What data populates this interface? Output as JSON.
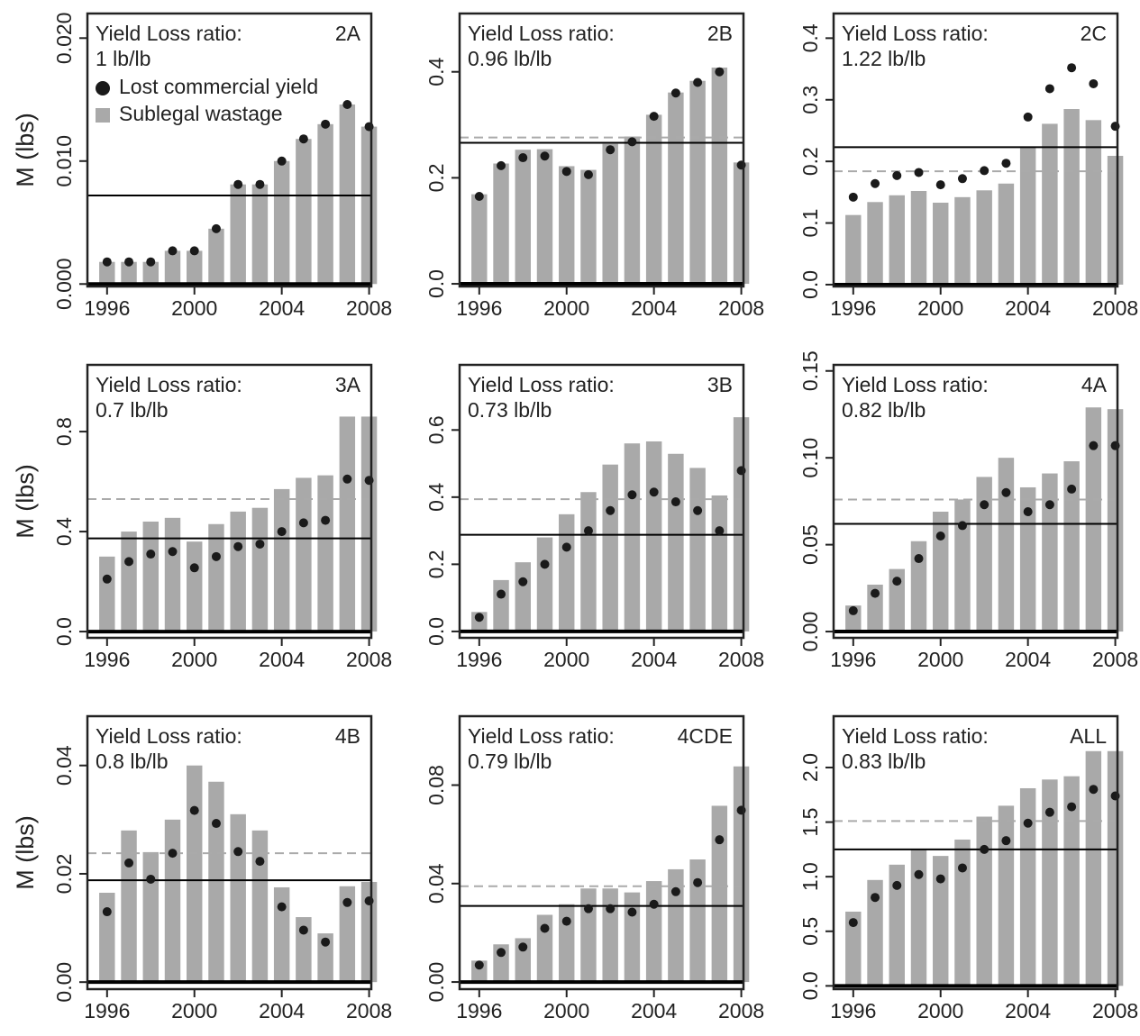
{
  "chart_data": [
    {
      "type": "bar",
      "title": "2A",
      "ratio_label": "Yield Loss ratio:",
      "ratio": "1 lb/lb",
      "ylabel": "M (lbs)",
      "x": [
        1996,
        1997,
        1998,
        1999,
        2000,
        2001,
        2002,
        2003,
        2004,
        2005,
        2006,
        2007,
        2008
      ],
      "series": [
        {
          "name": "Lost commercial yield",
          "type": "scatter",
          "color": "#1a1a1a",
          "values": [
            0.0018,
            0.0018,
            0.0018,
            0.0027,
            0.0027,
            0.0045,
            0.0081,
            0.0081,
            0.01,
            0.0118,
            0.013,
            0.0146,
            0.0128
          ]
        },
        {
          "name": "Sublegal wastage",
          "type": "bar",
          "color": "#a9a9a9",
          "values": [
            0.0018,
            0.0018,
            0.0018,
            0.0027,
            0.0027,
            0.0045,
            0.0081,
            0.0081,
            0.01,
            0.0118,
            0.013,
            0.0146,
            0.0128
          ]
        }
      ],
      "hlines": [
        {
          "value": 0.0072,
          "color": "#000000",
          "style": "solid"
        }
      ],
      "xlim": [
        1995.1,
        2008.1
      ],
      "xticks": [
        1996,
        2000,
        2004,
        2008
      ],
      "ylim": [
        -0.0002,
        0.022
      ],
      "yticks": [
        {
          "value": 0,
          "label": "0.000"
        },
        {
          "value": 0.01,
          "label": "0.010"
        },
        {
          "value": 0.02,
          "label": "0.020"
        }
      ]
    },
    {
      "type": "bar",
      "title": "2B",
      "ratio_label": "Yield Loss ratio:",
      "ratio": "0.96 lb/lb",
      "x": [
        1996,
        1997,
        1998,
        1999,
        2000,
        2001,
        2002,
        2003,
        2004,
        2005,
        2006,
        2007,
        2008
      ],
      "series": [
        {
          "type": "scatter",
          "color": "#1a1a1a",
          "values": [
            0.165,
            0.223,
            0.238,
            0.241,
            0.212,
            0.206,
            0.253,
            0.268,
            0.316,
            0.36,
            0.38,
            0.4,
            0.224
          ]
        },
        {
          "type": "bar",
          "color": "#a9a9a9",
          "values": [
            0.169,
            0.227,
            0.253,
            0.254,
            0.222,
            0.215,
            0.264,
            0.278,
            0.319,
            0.361,
            0.383,
            0.408,
            0.229
          ]
        }
      ],
      "hlines": [
        {
          "value": 0.276,
          "color": "#aaaaaa",
          "style": "dashed"
        },
        {
          "value": 0.266,
          "color": "#000000",
          "style": "solid"
        }
      ],
      "xlim": [
        1995.1,
        2008.1
      ],
      "xticks": [
        1996,
        2000,
        2004,
        2008
      ],
      "ylim": [
        -0.005,
        0.51
      ],
      "yticks": [
        {
          "value": 0,
          "label": "0.0"
        },
        0.2,
        0.4
      ]
    },
    {
      "type": "bar",
      "title": "2C",
      "ratio_label": "Yield Loss ratio:",
      "ratio": "1.22 lb/lb",
      "x": [
        1996,
        1997,
        1998,
        1999,
        2000,
        2001,
        2002,
        2003,
        2004,
        2005,
        2006,
        2007,
        2008
      ],
      "series": [
        {
          "type": "scatter",
          "color": "#1a1a1a",
          "values": [
            0.142,
            0.164,
            0.177,
            0.182,
            0.162,
            0.172,
            0.185,
            0.197,
            0.272,
            0.318,
            0.352,
            0.326,
            0.257
          ]
        },
        {
          "type": "bar",
          "color": "#a9a9a9",
          "values": [
            0.113,
            0.134,
            0.145,
            0.152,
            0.133,
            0.142,
            0.153,
            0.164,
            0.223,
            0.261,
            0.285,
            0.267,
            0.209
          ]
        }
      ],
      "hlines": [
        {
          "value": 0.184,
          "color": "#aaaaaa",
          "style": "dashed"
        },
        {
          "value": 0.223,
          "color": "#000000",
          "style": "solid"
        }
      ],
      "xlim": [
        1995.1,
        2008.1
      ],
      "xticks": [
        1996,
        2000,
        2004,
        2008
      ],
      "ylim": [
        -0.003,
        0.44
      ],
      "yticks": [
        {
          "value": 0,
          "label": "0.0"
        },
        0.1,
        0.2,
        0.3,
        0.4
      ]
    },
    {
      "type": "bar",
      "title": "3A",
      "ratio_label": "Yield Loss ratio:",
      "ratio": "0.7 lb/lb",
      "ylabel": "M (lbs)",
      "x": [
        1996,
        1997,
        1998,
        1999,
        2000,
        2001,
        2002,
        2003,
        2004,
        2005,
        2006,
        2007,
        2008
      ],
      "series": [
        {
          "type": "scatter",
          "color": "#1a1a1a",
          "values": [
            0.21,
            0.28,
            0.31,
            0.32,
            0.255,
            0.3,
            0.34,
            0.35,
            0.4,
            0.435,
            0.445,
            0.61,
            0.605
          ]
        },
        {
          "type": "bar",
          "color": "#a9a9a9",
          "values": [
            0.3,
            0.4,
            0.44,
            0.455,
            0.36,
            0.43,
            0.48,
            0.495,
            0.57,
            0.615,
            0.625,
            0.86,
            0.86
          ]
        }
      ],
      "hlines": [
        {
          "value": 0.53,
          "color": "#aaaaaa",
          "style": "dashed"
        },
        {
          "value": 0.373,
          "color": "#000000",
          "style": "solid"
        }
      ],
      "xlim": [
        1995.1,
        2008.1
      ],
      "xticks": [
        1996,
        2000,
        2004,
        2008
      ],
      "ylim": [
        -0.025,
        1.067
      ],
      "yticks": [
        {
          "value": 0,
          "label": "0.0"
        },
        0.4,
        0.8
      ]
    },
    {
      "type": "bar",
      "title": "3B",
      "ratio_label": "Yield Loss ratio:",
      "ratio": "0.73 lb/lb",
      "x": [
        1996,
        1997,
        1998,
        1999,
        2000,
        2001,
        2002,
        2003,
        2004,
        2005,
        2006,
        2007,
        2008
      ],
      "series": [
        {
          "type": "scatter",
          "color": "#1a1a1a",
          "values": [
            0.042,
            0.111,
            0.148,
            0.2,
            0.251,
            0.3,
            0.36,
            0.407,
            0.415,
            0.386,
            0.36,
            0.3,
            0.479
          ]
        },
        {
          "type": "bar",
          "color": "#a9a9a9",
          "values": [
            0.058,
            0.153,
            0.206,
            0.28,
            0.349,
            0.415,
            0.497,
            0.56,
            0.566,
            0.529,
            0.487,
            0.405,
            0.638
          ]
        }
      ],
      "hlines": [
        {
          "value": 0.394,
          "color": "#aaaaaa",
          "style": "dashed"
        },
        {
          "value": 0.288,
          "color": "#000000",
          "style": "solid"
        }
      ],
      "xlim": [
        1995.1,
        2008.1
      ],
      "xticks": [
        1996,
        2000,
        2004,
        2008
      ],
      "ylim": [
        -0.019,
        0.794
      ],
      "yticks": [
        {
          "value": 0,
          "label": "0.0"
        },
        0.2,
        0.4,
        0.6
      ]
    },
    {
      "type": "bar",
      "title": "4A",
      "ratio_label": "Yield Loss ratio:",
      "ratio": "0.82 lb/lb",
      "x": [
        1996,
        1997,
        1998,
        1999,
        2000,
        2001,
        2002,
        2003,
        2004,
        2005,
        2006,
        2007,
        2008
      ],
      "series": [
        {
          "type": "scatter",
          "color": "#1a1a1a",
          "values": [
            0.012,
            0.022,
            0.029,
            0.042,
            0.055,
            0.061,
            0.073,
            0.08,
            0.069,
            0.073,
            0.082,
            0.107,
            0.107
          ]
        },
        {
          "type": "bar",
          "color": "#a9a9a9",
          "values": [
            0.015,
            0.027,
            0.036,
            0.052,
            0.069,
            0.076,
            0.089,
            0.1,
            0.083,
            0.091,
            0.098,
            0.129,
            0.128
          ]
        }
      ],
      "hlines": [
        {
          "value": 0.076,
          "color": "#aaaaaa",
          "style": "dashed"
        },
        {
          "value": 0.062,
          "color": "#000000",
          "style": "solid"
        }
      ],
      "xlim": [
        1995.1,
        2008.1
      ],
      "xticks": [
        1996,
        2000,
        2004,
        2008
      ],
      "ylim": [
        -0.0036,
        0.1535
      ],
      "yticks": [
        {
          "value": 0,
          "label": "0.00"
        },
        0.05,
        {
          "value": 0.1,
          "label": "0.10"
        },
        0.15
      ]
    },
    {
      "type": "bar",
      "title": "4B",
      "ratio_label": "Yield Loss ratio:",
      "ratio": "0.8 lb/lb",
      "ylabel": "M (lbs)",
      "x": [
        1996,
        1997,
        1998,
        1999,
        2000,
        2001,
        2002,
        2003,
        2004,
        2005,
        2006,
        2007,
        2008
      ],
      "series": [
        {
          "type": "scatter",
          "color": "#1a1a1a",
          "values": [
            0.013,
            0.022,
            0.019,
            0.0238,
            0.0317,
            0.0293,
            0.0241,
            0.0223,
            0.0139,
            0.0096,
            0.0074,
            0.0147,
            0.015
          ]
        },
        {
          "type": "bar",
          "color": "#a9a9a9",
          "values": [
            0.0165,
            0.028,
            0.024,
            0.03,
            0.04,
            0.037,
            0.031,
            0.028,
            0.0175,
            0.012,
            0.009,
            0.0177,
            0.0185
          ]
        }
      ],
      "hlines": [
        {
          "value": 0.0238,
          "color": "#aaaaaa",
          "style": "dashed"
        },
        {
          "value": 0.0188,
          "color": "#000000",
          "style": "solid"
        }
      ],
      "xlim": [
        1995.1,
        2008.1
      ],
      "xticks": [
        1996,
        2000,
        2004,
        2008
      ],
      "ylim": [
        -0.0013,
        0.0491
      ],
      "yticks": [
        {
          "value": 0,
          "label": "0.00"
        },
        0.02,
        0.04
      ]
    },
    {
      "type": "bar",
      "title": "4CDE",
      "ratio_label": "Yield Loss ratio:",
      "ratio": "0.79 lb/lb",
      "x": [
        1996,
        1997,
        1998,
        1999,
        2000,
        2001,
        2002,
        2003,
        2004,
        2005,
        2006,
        2007,
        2008
      ],
      "series": [
        {
          "type": "scatter",
          "color": "#1a1a1a",
          "values": [
            0.0069,
            0.012,
            0.0142,
            0.0218,
            0.0247,
            0.0298,
            0.0298,
            0.0284,
            0.0316,
            0.0367,
            0.0404,
            0.0578,
            0.0698
          ]
        },
        {
          "type": "bar",
          "color": "#a9a9a9",
          "values": [
            0.0087,
            0.0153,
            0.0178,
            0.0273,
            0.0316,
            0.038,
            0.038,
            0.0364,
            0.041,
            0.0458,
            0.0498,
            0.0716,
            0.0876
          ]
        }
      ],
      "hlines": [
        {
          "value": 0.0389,
          "color": "#aaaaaa",
          "style": "dashed"
        },
        {
          "value": 0.0309,
          "color": "#000000",
          "style": "solid"
        }
      ],
      "xlim": [
        1995.1,
        2008.1
      ],
      "xticks": [
        1996,
        2000,
        2004,
        2008
      ],
      "ylim": [
        -0.0029,
        0.108
      ],
      "yticks": [
        {
          "value": 0,
          "label": "0.00"
        },
        0.04,
        0.08
      ]
    },
    {
      "type": "bar",
      "title": "ALL",
      "ratio_label": "Yield Loss ratio:",
      "ratio": "0.83 lb/lb",
      "x": [
        1996,
        1997,
        1998,
        1999,
        2000,
        2001,
        2002,
        2003,
        2004,
        2005,
        2006,
        2007,
        2008
      ],
      "series": [
        {
          "type": "scatter",
          "color": "#1a1a1a",
          "values": [
            0.58,
            0.81,
            0.92,
            1.02,
            0.98,
            1.08,
            1.25,
            1.33,
            1.49,
            1.59,
            1.64,
            1.8,
            1.74
          ]
        },
        {
          "type": "bar",
          "color": "#a9a9a9",
          "values": [
            0.68,
            0.97,
            1.11,
            1.25,
            1.19,
            1.34,
            1.55,
            1.65,
            1.81,
            1.89,
            1.92,
            2.15,
            2.15
          ]
        }
      ],
      "hlines": [
        {
          "value": 1.51,
          "color": "#aaaaaa",
          "style": "dashed"
        },
        {
          "value": 1.25,
          "color": "#000000",
          "style": "solid"
        }
      ],
      "xlim": [
        1995.1,
        2008.1
      ],
      "xticks": [
        1996,
        2000,
        2004,
        2008
      ],
      "ylim": [
        -0.03,
        2.47
      ],
      "yticks": [
        {
          "value": 0,
          "label": "0.0"
        },
        0.5,
        {
          "value": 1,
          "label": "1.0"
        },
        1.5,
        {
          "value": 2,
          "label": "2.0"
        }
      ]
    }
  ]
}
